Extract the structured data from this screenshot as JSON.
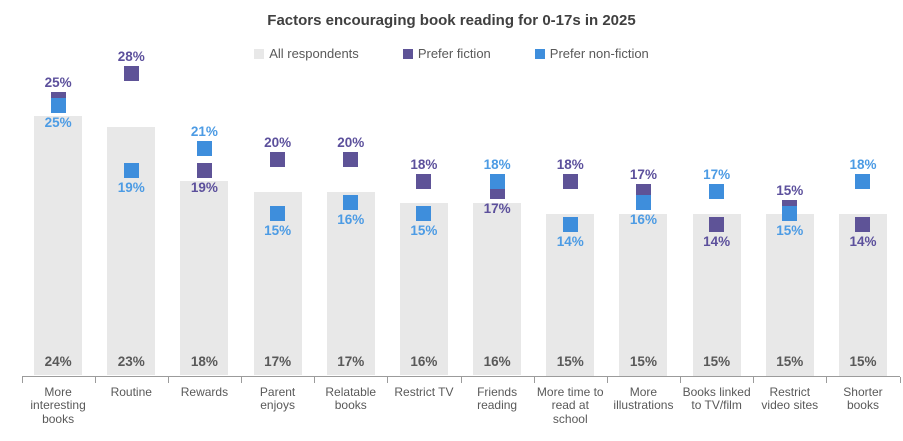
{
  "chart_data": {
    "type": "bar",
    "title": "Factors encouraging book reading for 0-17s in 2025",
    "xlabel": "",
    "ylabel": "",
    "ylim": [
      0,
      30
    ],
    "grid": false,
    "legend_position": "top-center",
    "legend": [
      "All respondents",
      "Prefer fiction",
      "Prefer non-fiction"
    ],
    "value_suffix": "%",
    "categories": [
      "More interesting books",
      "Routine",
      "Rewards",
      "Parent enjoys",
      "Relatable books",
      "Restrict TV",
      "Friends reading",
      "More time to read at school",
      "More illustrations",
      "Books linked to TV/film",
      "Restrict video sites",
      "Shorter books"
    ],
    "series": [
      {
        "name": "All respondents",
        "mark": "bar",
        "color": "#E8E8E8",
        "label_color": "#595959",
        "values": [
          24,
          23,
          18,
          17,
          17,
          16,
          16,
          15,
          15,
          15,
          15,
          15
        ]
      },
      {
        "name": "Prefer fiction",
        "mark": "square",
        "color": "#5E5397",
        "label_color": "#5C509C",
        "values": [
          25,
          28,
          19,
          20,
          20,
          18,
          17,
          18,
          17,
          14,
          15,
          14
        ]
      },
      {
        "name": "Prefer non-fiction",
        "mark": "square",
        "color": "#3E8EDC",
        "label_color": "#4C9BE4",
        "values": [
          25,
          19,
          21,
          15,
          16,
          15,
          18,
          14,
          16,
          17,
          15,
          18
        ]
      }
    ]
  }
}
